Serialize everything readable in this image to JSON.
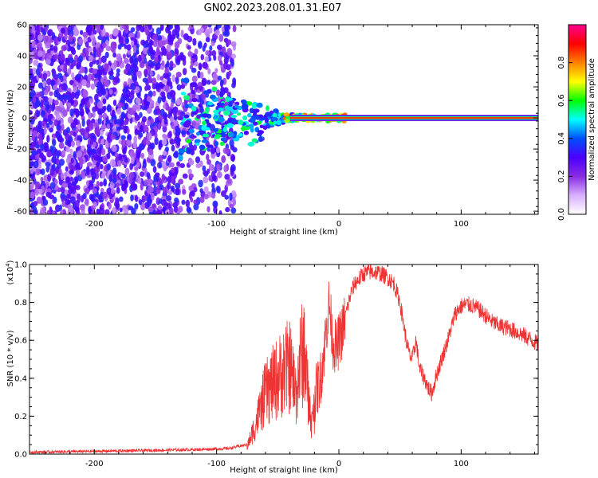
{
  "title": "GN02.2023.208.01.31.E07",
  "chart_data": [
    {
      "type": "heatmap",
      "xlabel": "Height of straight line (km)",
      "ylabel": "Frequency (Hz)",
      "xlim": [
        -253,
        163
      ],
      "ylim": [
        -62,
        60
      ],
      "x_ticks": [
        "-200",
        "-100",
        "0",
        "100"
      ],
      "x_tick_values": [
        -200,
        -100,
        0,
        100
      ],
      "y_ticks": [
        "-60",
        "-40",
        "-20",
        "0",
        "20",
        "40",
        "60"
      ],
      "y_tick_values": [
        -60,
        -40,
        -20,
        0,
        20,
        40,
        60
      ],
      "colorbar": {
        "label": "Normalized spectral amplitude",
        "range": [
          0,
          1
        ],
        "ticks": [
          "0.0",
          "0.2",
          "0.4",
          "0.6",
          "0.8"
        ],
        "tick_values": [
          0,
          0.2,
          0.4,
          0.6,
          0.8
        ],
        "colors": [
          "#ffffff",
          "#d8b0ff",
          "#8a2be2",
          "#4b00ff",
          "#0050ff",
          "#00ffff",
          "#00ff00",
          "#ffff00",
          "#ff8000",
          "#ff0000",
          "#ff0090"
        ]
      },
      "signal_line": {
        "frequency": 0,
        "x_start": -40,
        "x_end": 163
      },
      "noise_region": {
        "x_start": -253,
        "x_end": -85
      }
    },
    {
      "type": "line",
      "xlabel": "Height of straight line (km)",
      "ylabel": "SNR (10 * v/v)",
      "y_multiplier": "(x10",
      "y_multiplier_exp": "4",
      "y_multiplier_close": ")",
      "xlim": [
        -253,
        163
      ],
      "ylim": [
        0,
        1.0
      ],
      "x_ticks": [
        "-200",
        "-100",
        "0",
        "100"
      ],
      "x_tick_values": [
        -200,
        -100,
        0,
        100
      ],
      "y_ticks": [
        "0.0",
        "0.2",
        "0.4",
        "0.6",
        "0.8",
        "1.0"
      ],
      "y_tick_values": [
        0,
        0.2,
        0.4,
        0.6,
        0.8,
        1.0
      ],
      "color": "#ee3333",
      "envelope": {
        "x": [
          -253,
          -200,
          -150,
          -110,
          -90,
          -75,
          -68,
          -64,
          -60,
          -55,
          -50,
          -45,
          -40,
          -38,
          -35,
          -32,
          -30,
          -28,
          -25,
          -22,
          -20,
          -15,
          -12,
          -8,
          -5,
          -2,
          0,
          3,
          6,
          10,
          13,
          16,
          20,
          25,
          30,
          35,
          40,
          45,
          50,
          52,
          55,
          58,
          60,
          63,
          66,
          70,
          73,
          76,
          80,
          85,
          90,
          95,
          100,
          105,
          110,
          115,
          120,
          125,
          130,
          140,
          150,
          163
        ],
        "y": [
          0.01,
          0.015,
          0.02,
          0.025,
          0.03,
          0.05,
          0.2,
          0.3,
          0.4,
          0.45,
          0.5,
          0.55,
          0.58,
          0.5,
          0.4,
          0.6,
          0.65,
          0.7,
          0.35,
          0.2,
          0.3,
          0.4,
          0.55,
          0.8,
          0.6,
          0.55,
          0.6,
          0.65,
          0.75,
          0.85,
          0.9,
          0.92,
          0.95,
          0.96,
          0.96,
          0.95,
          0.93,
          0.9,
          0.8,
          0.72,
          0.6,
          0.52,
          0.5,
          0.6,
          0.45,
          0.4,
          0.35,
          0.32,
          0.42,
          0.52,
          0.62,
          0.74,
          0.78,
          0.79,
          0.78,
          0.76,
          0.73,
          0.7,
          0.68,
          0.66,
          0.63,
          0.58
        ]
      }
    }
  ]
}
